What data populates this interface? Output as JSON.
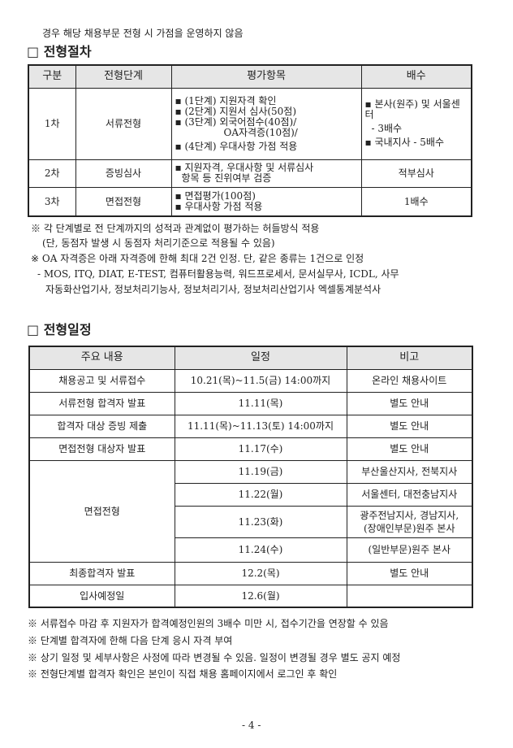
{
  "intro_line": "경우 해당 채용부문 전형 시 가점을 운영하지 않음",
  "section1": {
    "title": "□ 전형절차",
    "headers": [
      "구분",
      "전형단계",
      "평가항목",
      "배수"
    ],
    "rows": [
      {
        "stage": "1차",
        "name": "서류전형",
        "items": [
          "▪ (1단계) 지원자격 확인",
          "▪ (2단계) 지원서 심사(50점)",
          "▪ (3단계) 외국어점수(40점)/",
          "OA자격증(10점)/",
          "▪ (4단계) 우대사항 가점 적용"
        ],
        "ratio": [
          "▪ 본사(원주) 및 서울센터",
          "- 3배수",
          "▪ 국내지사 - 5배수"
        ]
      },
      {
        "stage": "2차",
        "name": "증빙심사",
        "items": [
          "▪ 지원자격, 우대사항 및 서류심사",
          "항목 등 진위여부 검증"
        ],
        "ratio": [
          "적부심사"
        ]
      },
      {
        "stage": "3차",
        "name": "면접전형",
        "items": [
          "▪ 면접평가(100점)",
          "▪ 우대사항 가점 적용"
        ],
        "ratio": [
          "1배수"
        ]
      }
    ],
    "notes": [
      "※ 각 단계별로 전 단계까지의 성적과 관계없이 평가하는 허들방식 적용",
      "(단, 동점자 발생 시 동점자 처리기준으로 적용될 수 있음)",
      "※ OA 자격증은 아래 자격증에 한해 최대 2건 인정. 단, 같은 종류는 1건으로 인정",
      "- MOS, ITQ, DIAT, E-TEST, 컴퓨터활용능력, 워드프로세서, 문서실무사, ICDL, 사무",
      "자동화산업기사, 정보처리기능사, 정보처리기사, 정보처리산업기사 엑셀통계분석사"
    ]
  },
  "section2": {
    "title": "□ 전형일정",
    "headers": [
      "주요 내용",
      "일정",
      "비고"
    ],
    "rows": [
      {
        "content": "채용공고 및 서류접수",
        "date": "10.21(목)~11.5(금)  14:00까지",
        "note": "온라인 채용사이트"
      },
      {
        "content": "서류전형 합격자 발표",
        "date": "11.11(목)",
        "note": "별도 안내"
      },
      {
        "content": "합격자 대상 증빙 제출",
        "date": "11.11(목)~11.13(토)  14:00까지",
        "note": "별도 안내"
      },
      {
        "content": "면접전형 대상자 발표",
        "date": "11.17(수)",
        "note": "별도 안내"
      }
    ],
    "interview": {
      "content": "면접전형",
      "slots": [
        {
          "date": "11.19(금)",
          "note": "부산울산지사, 전북지사"
        },
        {
          "date": "11.22(월)",
          "note": "서울센터, 대전충남지사"
        },
        {
          "date": "11.23(화)",
          "note": "광주전남지사, 경남지사, (장애인부문)원주 본사"
        },
        {
          "date": "11.24(수)",
          "note": "(일반부문)원주 본사"
        }
      ]
    },
    "final_rows": [
      {
        "content": "최종합격자 발표",
        "date": "12.2(목)",
        "note": "별도 안내"
      },
      {
        "content": "입사예정일",
        "date": "12.6(월)",
        "note": ""
      }
    ],
    "notes": [
      "※ 서류접수 마감 후 지원자가 합격예정인원의 3배수 미만 시, 접수기간을 연장할 수 있음",
      "※ 단계별 합격자에 한해 다음 단계 응시 자격 부여",
      "※ 상기 일정 및 세부사항은 사정에 따라 변경될 수 있음. 일정이 변경될 경우 별도 공지 예정",
      "※ 전형단계별 합격자 확인은 본인이 직접 채용 홈페이지에서 로그인 후 확인"
    ]
  },
  "page_number": "- 4 -"
}
